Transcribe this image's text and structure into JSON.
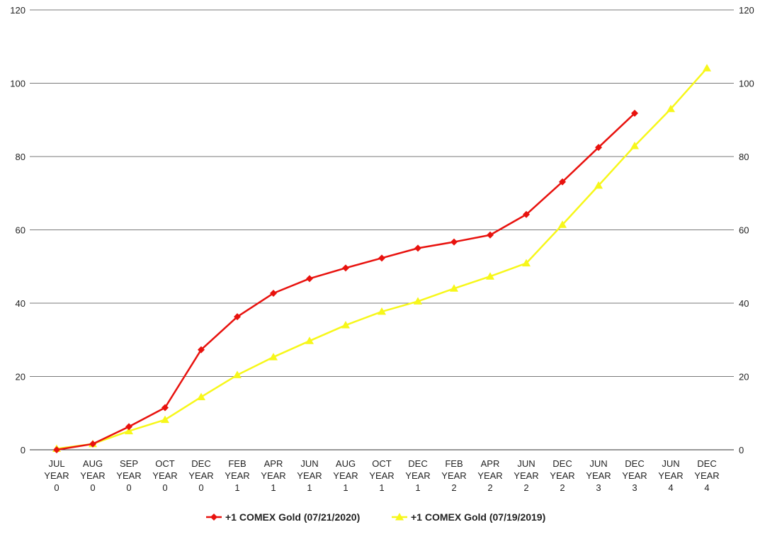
{
  "chart_data": {
    "type": "line",
    "categories": [
      [
        "JUL",
        "YEAR",
        "0"
      ],
      [
        "AUG",
        "YEAR",
        "0"
      ],
      [
        "SEP",
        "YEAR",
        "0"
      ],
      [
        "OCT",
        "YEAR",
        "0"
      ],
      [
        "DEC",
        "YEAR",
        "0"
      ],
      [
        "FEB",
        "YEAR",
        "1"
      ],
      [
        "APR",
        "YEAR",
        "1"
      ],
      [
        "JUN",
        "YEAR",
        "1"
      ],
      [
        "AUG",
        "YEAR",
        "1"
      ],
      [
        "OCT",
        "YEAR",
        "1"
      ],
      [
        "DEC",
        "YEAR",
        "1"
      ],
      [
        "FEB",
        "YEAR",
        "2"
      ],
      [
        "APR",
        "YEAR",
        "2"
      ],
      [
        "JUN",
        "YEAR",
        "2"
      ],
      [
        "DEC",
        "YEAR",
        "2"
      ],
      [
        "JUN",
        "YEAR",
        "3"
      ],
      [
        "DEC",
        "YEAR",
        "3"
      ],
      [
        "JUN",
        "YEAR",
        "4"
      ],
      [
        "DEC",
        "YEAR",
        "4"
      ]
    ],
    "series": [
      {
        "name": "+1 COMEX Gold (07/21/2020)",
        "color": "#e8120e",
        "marker": "diamond",
        "values": [
          0,
          1.6,
          6.3,
          11.5,
          27.3,
          36.3,
          42.7,
          46.7,
          49.6,
          52.3,
          55.0,
          56.7,
          58.6,
          64.2,
          73.1,
          82.5,
          91.8,
          null,
          null
        ]
      },
      {
        "name": "+1 COMEX Gold (07/19/2019)",
        "color": "#f7f71a",
        "marker": "triangle",
        "values": [
          0.3,
          1.6,
          5.1,
          8.2,
          14.4,
          20.4,
          25.3,
          29.7,
          34.0,
          37.7,
          40.5,
          44.0,
          47.3,
          50.9,
          61.4,
          72.1,
          82.9,
          93.0,
          104.1
        ]
      }
    ],
    "ylim": [
      0,
      120
    ],
    "yticks": [
      0,
      20,
      40,
      60,
      80,
      100,
      120
    ],
    "dual_y_axis": true,
    "grid": true,
    "legend_position": "bottom"
  }
}
